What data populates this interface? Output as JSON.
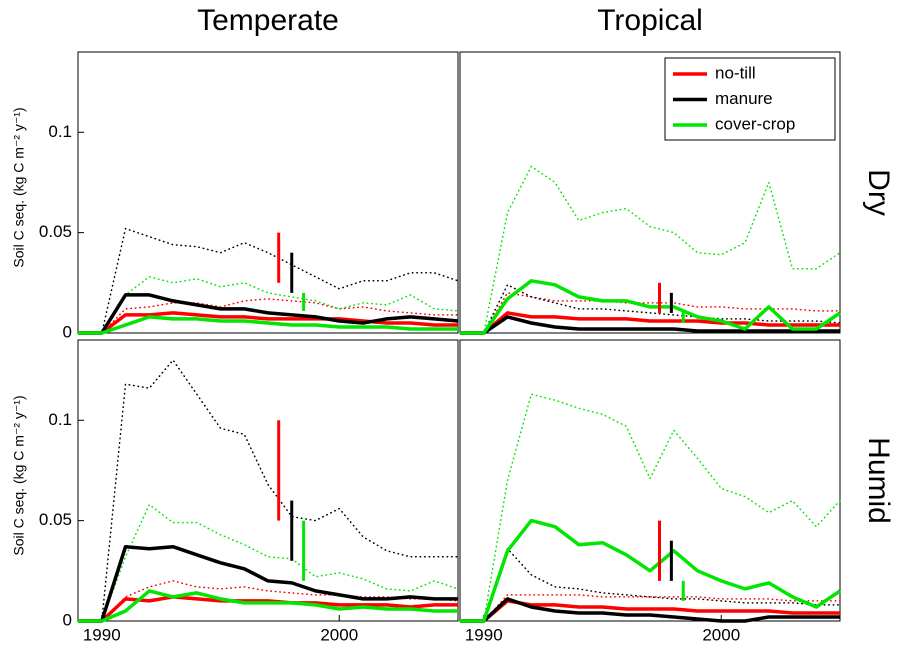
{
  "chart_data": [
    {
      "type": "line",
      "title": "Temperate",
      "ylabel": "Soil C seq. (kg C m⁻² y⁻¹)",
      "x": [
        1989,
        1990,
        1991,
        1992,
        1993,
        1994,
        1995,
        1996,
        1997,
        1998,
        1999,
        2000,
        2001,
        2002,
        2003,
        2004,
        2005
      ],
      "xlim": [
        1989,
        2005
      ],
      "ylim": [
        0,
        0.14
      ],
      "yticks": [
        0,
        0.05,
        0.1
      ],
      "series": [
        {
          "color": "#ff0000",
          "values": [
            0,
            0,
            0.009,
            0.009,
            0.01,
            0.009,
            0.008,
            0.008,
            0.007,
            0.007,
            0.007,
            0.007,
            0.006,
            0.005,
            0.005,
            0.004,
            0.004
          ]
        },
        {
          "color": "#000000",
          "values": [
            0,
            0,
            0.019,
            0.019,
            0.016,
            0.014,
            0.012,
            0.012,
            0.01,
            0.009,
            0.008,
            0.006,
            0.005,
            0.007,
            0.008,
            0.007,
            0.006
          ]
        },
        {
          "color": "#00e600",
          "values": [
            0,
            0,
            0.004,
            0.008,
            0.007,
            0.007,
            0.006,
            0.006,
            0.005,
            0.004,
            0.004,
            0.003,
            0.003,
            0.003,
            0.002,
            0.002,
            0.002
          ]
        }
      ],
      "bounds": [
        {
          "color": "#ff0000",
          "values": [
            0,
            0,
            0.012,
            0.013,
            0.015,
            0.015,
            0.013,
            0.016,
            0.017,
            0.016,
            0.015,
            0.012,
            0.013,
            0.011,
            0.01,
            0.009,
            0.009
          ]
        },
        {
          "color": "#000000",
          "values": [
            0,
            0,
            0.052,
            0.048,
            0.044,
            0.043,
            0.04,
            0.045,
            0.04,
            0.034,
            0.028,
            0.022,
            0.026,
            0.026,
            0.03,
            0.03,
            0.026
          ]
        },
        {
          "color": "#00e600",
          "values": [
            0,
            0,
            0.019,
            0.028,
            0.025,
            0.027,
            0.023,
            0.025,
            0.02,
            0.018,
            0.016,
            0.012,
            0.015,
            0.014,
            0.019,
            0.012,
            0.011
          ]
        }
      ],
      "ranges": [
        {
          "color": "#ff0000",
          "x": 1997.45,
          "values": [
            0.025,
            0.05
          ]
        },
        {
          "color": "#000000",
          "x": 1998.0,
          "values": [
            0.02,
            0.04
          ]
        },
        {
          "color": "#00e600",
          "x": 1998.5,
          "values": [
            0.011,
            0.02
          ]
        }
      ]
    },
    {
      "type": "line",
      "title": "Tropical",
      "row_label": "Dry",
      "legend": "upper right",
      "x": [
        1989,
        1990,
        1991,
        1992,
        1993,
        1994,
        1995,
        1996,
        1997,
        1998,
        1999,
        2000,
        2001,
        2002,
        2003,
        2004,
        2005
      ],
      "xlim": [
        1989,
        2005
      ],
      "ylim": [
        0,
        0.14
      ],
      "series": [
        {
          "name": "no-till",
          "color": "#ff0000",
          "values": [
            0,
            0,
            0.01,
            0.008,
            0.008,
            0.007,
            0.007,
            0.007,
            0.006,
            0.006,
            0.006,
            0.005,
            0.005,
            0.004,
            0.004,
            0.004,
            0.004
          ]
        },
        {
          "name": "manure",
          "color": "#000000",
          "values": [
            0,
            0,
            0.008,
            0.005,
            0.003,
            0.002,
            0.002,
            0.002,
            0.002,
            0.002,
            0.001,
            0.001,
            0.001,
            0.001,
            0.001,
            0.001,
            0.001
          ]
        },
        {
          "name": "cover-crop",
          "color": "#00e600",
          "values": [
            0,
            0,
            0.017,
            0.026,
            0.024,
            0.018,
            0.016,
            0.016,
            0.013,
            0.013,
            0.008,
            0.006,
            0.002,
            0.013,
            0.002,
            0.002,
            0.01
          ]
        }
      ],
      "bounds": [
        {
          "color": "#ff0000",
          "values": [
            0,
            0,
            0.02,
            0.018,
            0.016,
            0.016,
            0.016,
            0.015,
            0.015,
            0.015,
            0.013,
            0.013,
            0.012,
            0.012,
            0.012,
            0.011,
            0.011
          ]
        },
        {
          "color": "#000000",
          "values": [
            0,
            0,
            0.024,
            0.018,
            0.015,
            0.012,
            0.012,
            0.011,
            0.01,
            0.009,
            0.008,
            0.007,
            0.007,
            0.006,
            0.006,
            0.006,
            0.005
          ]
        },
        {
          "color": "#00e600",
          "values": [
            0,
            0,
            0.06,
            0.083,
            0.075,
            0.056,
            0.06,
            0.062,
            0.053,
            0.05,
            0.04,
            0.039,
            0.045,
            0.075,
            0.032,
            0.032,
            0.04
          ]
        }
      ],
      "ranges": [
        {
          "color": "#ff0000",
          "x": 1997.4,
          "values": [
            0.01,
            0.025
          ]
        },
        {
          "color": "#000000",
          "x": 1997.9,
          "values": [
            0.01,
            0.02
          ]
        },
        {
          "color": "#00e600",
          "x": 1998.4,
          "values": [
            0.005,
            0.011
          ]
        }
      ]
    },
    {
      "type": "line",
      "ylabel": "Soil C seq. (kg C m⁻² y⁻¹)",
      "x": [
        1989,
        1990,
        1991,
        1992,
        1993,
        1994,
        1995,
        1996,
        1997,
        1998,
        1999,
        2000,
        2001,
        2002,
        2003,
        2004,
        2005
      ],
      "xlim": [
        1989,
        2005
      ],
      "ylim": [
        0,
        0.14
      ],
      "yticks": [
        0,
        0.05,
        0.1
      ],
      "xticks": [
        1990,
        2000
      ],
      "series": [
        {
          "color": "#ff0000",
          "values": [
            0,
            0,
            0.011,
            0.01,
            0.012,
            0.011,
            0.01,
            0.01,
            0.01,
            0.009,
            0.009,
            0.008,
            0.008,
            0.008,
            0.007,
            0.008,
            0.008
          ]
        },
        {
          "color": "#000000",
          "values": [
            0,
            0,
            0.037,
            0.036,
            0.037,
            0.033,
            0.029,
            0.026,
            0.02,
            0.019,
            0.015,
            0.013,
            0.011,
            0.011,
            0.012,
            0.011,
            0.011
          ]
        },
        {
          "color": "#00e600",
          "values": [
            0,
            0,
            0.005,
            0.015,
            0.012,
            0.014,
            0.011,
            0.009,
            0.009,
            0.009,
            0.008,
            0.006,
            0.007,
            0.006,
            0.006,
            0.005,
            0.005
          ]
        }
      ],
      "bounds": [
        {
          "color": "#ff0000",
          "values": [
            0,
            0,
            0.012,
            0.017,
            0.02,
            0.017,
            0.016,
            0.017,
            0.015,
            0.014,
            0.013,
            0.013,
            0.012,
            0.012,
            0.011,
            0.011,
            0.01
          ]
        },
        {
          "color": "#000000",
          "values": [
            0,
            0,
            0.118,
            0.116,
            0.13,
            0.113,
            0.096,
            0.093,
            0.068,
            0.052,
            0.05,
            0.056,
            0.042,
            0.035,
            0.032,
            0.032,
            0.032
          ]
        },
        {
          "color": "#00e600",
          "values": [
            0,
            0,
            0.032,
            0.058,
            0.049,
            0.049,
            0.043,
            0.038,
            0.032,
            0.031,
            0.022,
            0.024,
            0.021,
            0.016,
            0.015,
            0.02,
            0.016
          ]
        }
      ],
      "ranges": [
        {
          "color": "#ff0000",
          "x": 1997.45,
          "values": [
            0.05,
            0.1
          ]
        },
        {
          "color": "#000000",
          "x": 1998.0,
          "values": [
            0.03,
            0.06
          ]
        },
        {
          "color": "#00e600",
          "x": 1998.5,
          "values": [
            0.02,
            0.05
          ]
        }
      ]
    },
    {
      "type": "line",
      "row_label": "Humid",
      "x": [
        1989,
        1990,
        1991,
        1992,
        1993,
        1994,
        1995,
        1996,
        1997,
        1998,
        1999,
        2000,
        2001,
        2002,
        2003,
        2004,
        2005
      ],
      "xlim": [
        1989,
        2005
      ],
      "ylim": [
        0,
        0.14
      ],
      "xticks": [
        1990,
        2000
      ],
      "series": [
        {
          "color": "#ff0000",
          "values": [
            0,
            0,
            0.01,
            0.008,
            0.008,
            0.007,
            0.007,
            0.006,
            0.006,
            0.006,
            0.005,
            0.005,
            0.005,
            0.005,
            0.004,
            0.004,
            0.004
          ]
        },
        {
          "color": "#000000",
          "values": [
            0,
            0,
            0.011,
            0.007,
            0.005,
            0.004,
            0.004,
            0.003,
            0.003,
            0.002,
            0.001,
            0.0,
            0.0,
            0.002,
            0.002,
            0.002,
            0.002
          ]
        },
        {
          "color": "#00e600",
          "values": [
            0,
            0,
            0.035,
            0.05,
            0.047,
            0.038,
            0.039,
            0.033,
            0.025,
            0.035,
            0.025,
            0.02,
            0.016,
            0.019,
            0.012,
            0.007,
            0.015
          ]
        }
      ],
      "bounds": [
        {
          "color": "#ff0000",
          "values": [
            0,
            0,
            0.013,
            0.013,
            0.013,
            0.013,
            0.012,
            0.012,
            0.012,
            0.012,
            0.012,
            0.011,
            0.011,
            0.011,
            0.01,
            0.01,
            0.01
          ]
        },
        {
          "color": "#000000",
          "values": [
            0,
            0,
            0.036,
            0.023,
            0.017,
            0.016,
            0.014,
            0.013,
            0.012,
            0.011,
            0.011,
            0.01,
            0.009,
            0.009,
            0.009,
            0.008,
            0.008
          ]
        },
        {
          "color": "#00e600",
          "values": [
            0,
            0,
            0.07,
            0.113,
            0.11,
            0.106,
            0.103,
            0.097,
            0.071,
            0.095,
            0.081,
            0.066,
            0.062,
            0.054,
            0.06,
            0.047,
            0.06
          ]
        }
      ],
      "ranges": [
        {
          "color": "#ff0000",
          "x": 1997.4,
          "values": [
            0.02,
            0.05
          ]
        },
        {
          "color": "#000000",
          "x": 1997.9,
          "values": [
            0.02,
            0.04
          ]
        },
        {
          "color": "#00e600",
          "x": 1998.4,
          "values": [
            0.01,
            0.02
          ]
        }
      ]
    }
  ]
}
